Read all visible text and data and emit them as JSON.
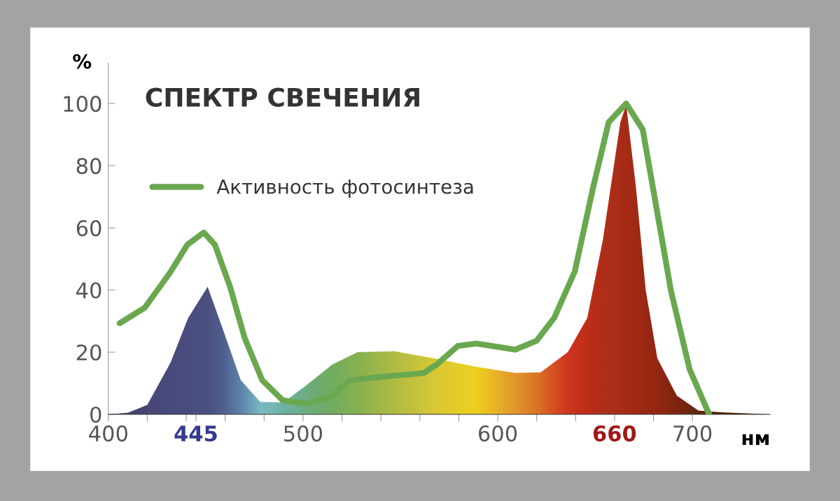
{
  "chart_data": {
    "type": "area",
    "title": "СПЕКТР СВЕЧЕНИЯ",
    "xlabel": "нм",
    "ylabel": "%",
    "xlim": [
      400,
      740
    ],
    "ylim": [
      0,
      113
    ],
    "xticks": [
      400,
      {
        "value": 420,
        "label": null
      },
      {
        "value": 440,
        "label": null
      },
      {
        "value": 445,
        "label": "445"
      },
      {
        "value": 460,
        "label": null
      },
      {
        "value": 480,
        "label": null
      },
      500,
      {
        "value": 520,
        "label": null
      },
      {
        "value": 540,
        "label": null
      },
      {
        "value": 560,
        "label": null
      },
      {
        "value": 580,
        "label": null
      },
      600,
      {
        "value": 620,
        "label": null
      },
      {
        "value": 640,
        "label": null
      },
      {
        "value": 660,
        "label": "660"
      },
      {
        "value": 680,
        "label": null
      },
      700
    ],
    "yticks": [
      0,
      20,
      40,
      60,
      80,
      100
    ],
    "grid": false,
    "legend": "top left",
    "series": [
      {
        "x": [
          400,
          410,
          420,
          432,
          441,
          451,
          459,
          468,
          478,
          490,
          502,
          515,
          528,
          547,
          569,
          589,
          609,
          622,
          636,
          646,
          654,
          663,
          666,
          671,
          676,
          682,
          692,
          703,
          716,
          740
        ],
        "values": [
          0,
          0.5,
          3,
          16.7,
          31,
          41,
          27,
          11,
          4,
          3.8,
          9.5,
          16,
          20,
          20.3,
          17.8,
          15.3,
          13.3,
          13.5,
          20,
          31,
          56,
          94,
          99.5,
          73,
          40,
          18,
          6,
          1.2,
          0.6,
          0
        ],
        "colors": [
          "#2a2a6e",
          "#2e2f78",
          "#313582",
          "#33388a",
          "#343b8c",
          "#35408f",
          "#3a52a0",
          "#4a7cc0",
          "#6ab8d8",
          "#5cb0b8",
          "#5aa88a",
          "#62a868",
          "#7aae58",
          "#a8ba48",
          "#d8c838",
          "#f0d020",
          "#e09030",
          "#d86028",
          "#cc2020",
          "#b81818",
          "#a81818",
          "#a01818",
          "#9c1616",
          "#981414",
          "#901212",
          "#881010",
          "#700e0e",
          "#501010",
          "#3a0a0a",
          "#300808"
        ]
      },
      {
        "type": "line",
        "name": "Активность фотосинтеза",
        "color": "#6aa84f",
        "x": [
          405.8,
          418.7,
          431.7,
          440.6,
          449,
          454.7,
          462.6,
          470,
          479,
          489.6,
          502,
          515,
          524,
          534.5,
          548,
          562,
          569,
          579.5,
          589,
          609,
          620,
          629,
          639.6,
          649,
          657,
          666,
          674.5,
          682,
          689,
          698.6,
          708.6
        ],
        "values": [
          29.3,
          34.3,
          45.6,
          54.6,
          58.5,
          54.6,
          40.9,
          24.6,
          11,
          4.5,
          3.4,
          6,
          11,
          11.7,
          12.5,
          13.3,
          16.2,
          22,
          22.8,
          20.8,
          23.7,
          31,
          46,
          73,
          94,
          100,
          91.6,
          64.8,
          39.7,
          14.4,
          0
        ]
      }
    ]
  }
}
